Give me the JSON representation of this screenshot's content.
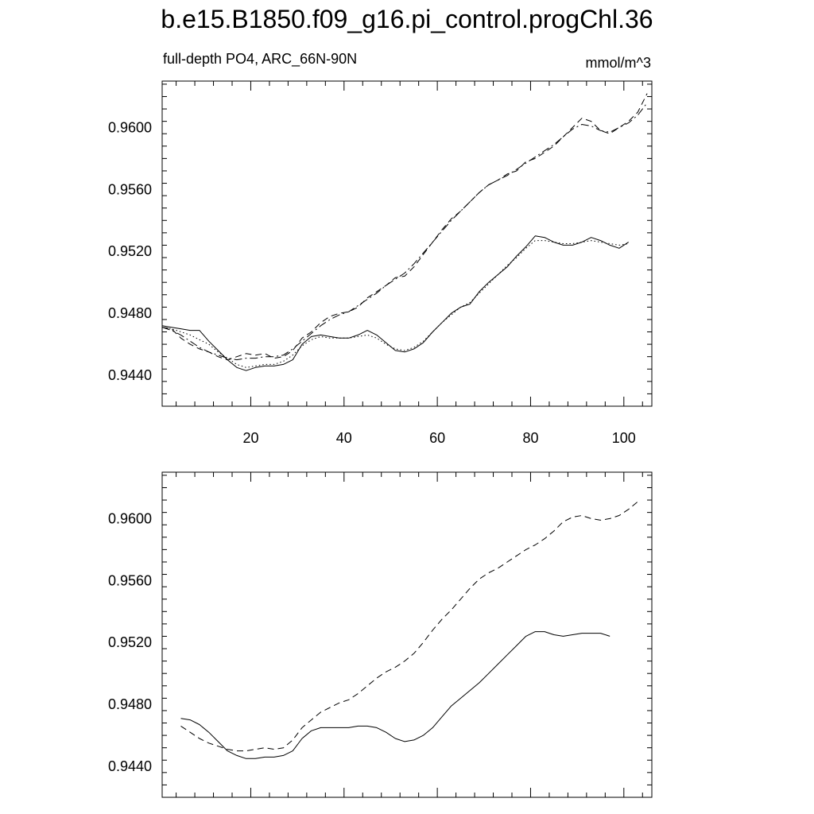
{
  "title": "b.e15.B1850.f09_g16.pi_control.progChl.36",
  "chart_data": [
    {
      "type": "line",
      "left_label": "full-depth PO4, ARC_66N-90N",
      "right_label": "mmol/m^3",
      "xlim": [
        1,
        106
      ],
      "ylim": [
        0.942,
        0.963
      ],
      "x_ticks": [
        20,
        40,
        60,
        80,
        100
      ],
      "x_tick_labels": [
        "20",
        "40",
        "60",
        "80",
        "100"
      ],
      "y_ticks": [
        0.944,
        0.948,
        0.952,
        0.956,
        0.96
      ],
      "y_tick_labels": [
        "0.9440",
        "0.9480",
        "0.9520",
        "0.9560",
        "0.9600"
      ],
      "series": [
        {
          "style": "solid",
          "x": [
            1,
            3,
            5,
            7,
            9,
            11,
            13,
            15,
            17,
            19,
            21,
            23,
            25,
            27,
            29,
            31,
            33,
            35,
            37,
            39,
            41,
            43,
            45,
            47,
            49,
            51,
            53,
            55,
            57,
            59,
            61,
            63,
            65,
            67,
            69,
            71,
            73,
            75,
            77,
            79,
            81,
            83,
            85,
            87,
            89,
            91,
            93,
            95,
            97,
            99,
            101
          ],
          "y": [
            0.9472,
            0.9471,
            0.947,
            0.9469,
            0.9469,
            0.9462,
            0.9456,
            0.945,
            0.9445,
            0.9443,
            0.9445,
            0.9446,
            0.9446,
            0.9447,
            0.945,
            0.946,
            0.9465,
            0.9466,
            0.9465,
            0.9464,
            0.9464,
            0.9466,
            0.9469,
            0.9466,
            0.9461,
            0.9456,
            0.9455,
            0.9457,
            0.9461,
            0.9468,
            0.9474,
            0.948,
            0.9484,
            0.9486,
            0.9494,
            0.95,
            0.9505,
            0.951,
            0.9517,
            0.9523,
            0.953,
            0.9529,
            0.9526,
            0.9524,
            0.9524,
            0.9526,
            0.9529,
            0.9527,
            0.9524,
            0.9522,
            0.9526
          ]
        },
        {
          "style": "dotted",
          "x": [
            1,
            3,
            5,
            7,
            9,
            11,
            13,
            15,
            17,
            19,
            21,
            23,
            25,
            27,
            29,
            31,
            33,
            35,
            37,
            39,
            41,
            43,
            45,
            47,
            49,
            51,
            53,
            55,
            57,
            59,
            61,
            63,
            65,
            67,
            69,
            71,
            73,
            75,
            77,
            79,
            81,
            83,
            85,
            87,
            89,
            91,
            93,
            95,
            97,
            99,
            101
          ],
          "y": [
            0.9471,
            0.947,
            0.9468,
            0.9466,
            0.9463,
            0.946,
            0.9455,
            0.9451,
            0.9447,
            0.9445,
            0.9446,
            0.9447,
            0.9447,
            0.9449,
            0.9453,
            0.9459,
            0.9463,
            0.9465,
            0.9464,
            0.9464,
            0.9464,
            0.9465,
            0.9466,
            0.9464,
            0.946,
            0.9457,
            0.9456,
            0.9458,
            0.9462,
            0.9468,
            0.9474,
            0.9479,
            0.9484,
            0.9487,
            0.9493,
            0.9499,
            0.9505,
            0.9511,
            0.9516,
            0.9522,
            0.9527,
            0.9527,
            0.9526,
            0.9525,
            0.9525,
            0.9526,
            0.9527,
            0.9526,
            0.9525,
            0.9524,
            0.9525
          ]
        },
        {
          "style": "dashed",
          "x": [
            1,
            3,
            5,
            7,
            9,
            11,
            13,
            15,
            17,
            19,
            21,
            23,
            25,
            27,
            29,
            31,
            33,
            35,
            37,
            39,
            41,
            43,
            45,
            47,
            49,
            51,
            53,
            55,
            57,
            59,
            61,
            63,
            65,
            67,
            69,
            71,
            73,
            75,
            77,
            79,
            81,
            83,
            85,
            87,
            89,
            91,
            93,
            95,
            97,
            99,
            101,
            103,
            105
          ],
          "y": [
            0.9471,
            0.947,
            0.9464,
            0.946,
            0.9457,
            0.9455,
            0.9452,
            0.945,
            0.9452,
            0.9454,
            0.9453,
            0.9454,
            0.9451,
            0.9452,
            0.9456,
            0.9464,
            0.9468,
            0.9474,
            0.9478,
            0.948,
            0.9481,
            0.9484,
            0.949,
            0.9494,
            0.9498,
            0.9503,
            0.9504,
            0.951,
            0.9518,
            0.9526,
            0.9534,
            0.9541,
            0.9546,
            0.9552,
            0.9558,
            0.9563,
            0.9566,
            0.957,
            0.9572,
            0.9578,
            0.958,
            0.9584,
            0.9588,
            0.9594,
            0.96,
            0.9606,
            0.9604,
            0.9598,
            0.9596,
            0.96,
            0.9604,
            0.961,
            0.9622
          ]
        },
        {
          "style": "dashdot",
          "x": [
            1,
            3,
            5,
            7,
            9,
            11,
            13,
            15,
            17,
            19,
            21,
            23,
            25,
            27,
            29,
            31,
            33,
            35,
            37,
            39,
            41,
            43,
            45,
            47,
            49,
            51,
            53,
            55,
            57,
            59,
            61,
            63,
            65,
            67,
            69,
            71,
            73,
            75,
            77,
            79,
            81,
            83,
            85,
            87,
            89,
            91,
            93,
            95,
            97,
            99,
            101,
            103,
            105
          ],
          "y": [
            0.9471,
            0.9469,
            0.9466,
            0.9462,
            0.9458,
            0.9455,
            0.9453,
            0.9451,
            0.945,
            0.9451,
            0.9451,
            0.9452,
            0.9452,
            0.9453,
            0.9457,
            0.9462,
            0.9467,
            0.9472,
            0.9476,
            0.9479,
            0.9481,
            0.9485,
            0.9489,
            0.9493,
            0.9498,
            0.9502,
            0.9506,
            0.9512,
            0.9519,
            0.9526,
            0.9533,
            0.954,
            0.9546,
            0.9552,
            0.9558,
            0.9563,
            0.9566,
            0.9569,
            0.9573,
            0.9577,
            0.9581,
            0.9585,
            0.9589,
            0.9594,
            0.9599,
            0.9602,
            0.9601,
            0.9598,
            0.9597,
            0.96,
            0.9603,
            0.9608,
            0.9616
          ]
        }
      ]
    },
    {
      "type": "line",
      "xlim": [
        1,
        106
      ],
      "ylim": [
        0.942,
        0.963
      ],
      "x_ticks": [
        20,
        40,
        60,
        80,
        100
      ],
      "y_ticks": [
        0.944,
        0.948,
        0.952,
        0.956,
        0.96
      ],
      "y_tick_labels": [
        "0.9440",
        "0.9480",
        "0.9520",
        "0.9560",
        "0.9600"
      ],
      "series": [
        {
          "style": "solid",
          "x": [
            5,
            7,
            9,
            11,
            13,
            15,
            17,
            19,
            21,
            23,
            25,
            27,
            29,
            31,
            33,
            35,
            37,
            39,
            41,
            43,
            45,
            47,
            49,
            51,
            53,
            55,
            57,
            59,
            61,
            63,
            65,
            67,
            69,
            71,
            73,
            75,
            77,
            79,
            81,
            83,
            85,
            87,
            89,
            91,
            93,
            95,
            97
          ],
          "y": [
            0.9471,
            0.947,
            0.9467,
            0.9462,
            0.9456,
            0.945,
            0.9447,
            0.9445,
            0.9445,
            0.9446,
            0.9446,
            0.9447,
            0.945,
            0.9458,
            0.9463,
            0.9465,
            0.9465,
            0.9465,
            0.9465,
            0.9466,
            0.9466,
            0.9465,
            0.9462,
            0.9458,
            0.9456,
            0.9457,
            0.946,
            0.9465,
            0.9472,
            0.9479,
            0.9484,
            0.9489,
            0.9494,
            0.95,
            0.9506,
            0.9512,
            0.9518,
            0.9524,
            0.9527,
            0.9527,
            0.9525,
            0.9524,
            0.9525,
            0.9526,
            0.9526,
            0.9526,
            0.9524
          ]
        },
        {
          "style": "dashed",
          "x": [
            5,
            7,
            9,
            11,
            13,
            15,
            17,
            19,
            21,
            23,
            25,
            27,
            29,
            31,
            33,
            35,
            37,
            39,
            41,
            43,
            45,
            47,
            49,
            51,
            53,
            55,
            57,
            59,
            61,
            63,
            65,
            67,
            69,
            71,
            73,
            75,
            77,
            79,
            81,
            83,
            85,
            87,
            89,
            91,
            93,
            95,
            97,
            99,
            101,
            103
          ],
          "y": [
            0.9466,
            0.9462,
            0.9458,
            0.9455,
            0.9453,
            0.9451,
            0.945,
            0.945,
            0.9451,
            0.9452,
            0.9451,
            0.9452,
            0.9457,
            0.9465,
            0.947,
            0.9475,
            0.9478,
            0.9481,
            0.9483,
            0.9487,
            0.9492,
            0.9497,
            0.9501,
            0.9504,
            0.9508,
            0.9513,
            0.952,
            0.9528,
            0.9535,
            0.9541,
            0.9548,
            0.9555,
            0.9561,
            0.9565,
            0.9568,
            0.9572,
            0.9576,
            0.958,
            0.9583,
            0.9587,
            0.9592,
            0.9598,
            0.9601,
            0.9602,
            0.96,
            0.9599,
            0.96,
            0.9602,
            0.9606,
            0.9611
          ]
        }
      ]
    }
  ]
}
